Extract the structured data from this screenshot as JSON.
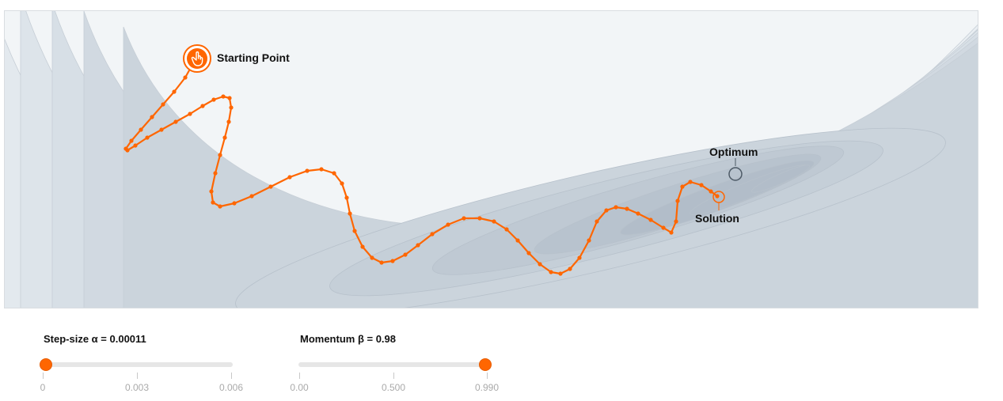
{
  "plot": {
    "start_label": "Starting Point",
    "optimum_label": "Optimum",
    "solution_label": "Solution",
    "start_icon": "hand-pointer-icon",
    "path_color": "#ff6600",
    "optimum_color": "#4d5a66"
  },
  "sliders": {
    "step_size": {
      "label": "Step-size α = 0.00011",
      "value": 0.00011,
      "min": 0,
      "max": 0.006,
      "ticks": [
        "0",
        "0.003",
        "0.006"
      ]
    },
    "momentum": {
      "label": "Momentum β = 0.98",
      "value": 0.98,
      "min": 0,
      "max": 0.99,
      "ticks": [
        "0.00",
        "0.500",
        "0.990"
      ]
    }
  }
}
